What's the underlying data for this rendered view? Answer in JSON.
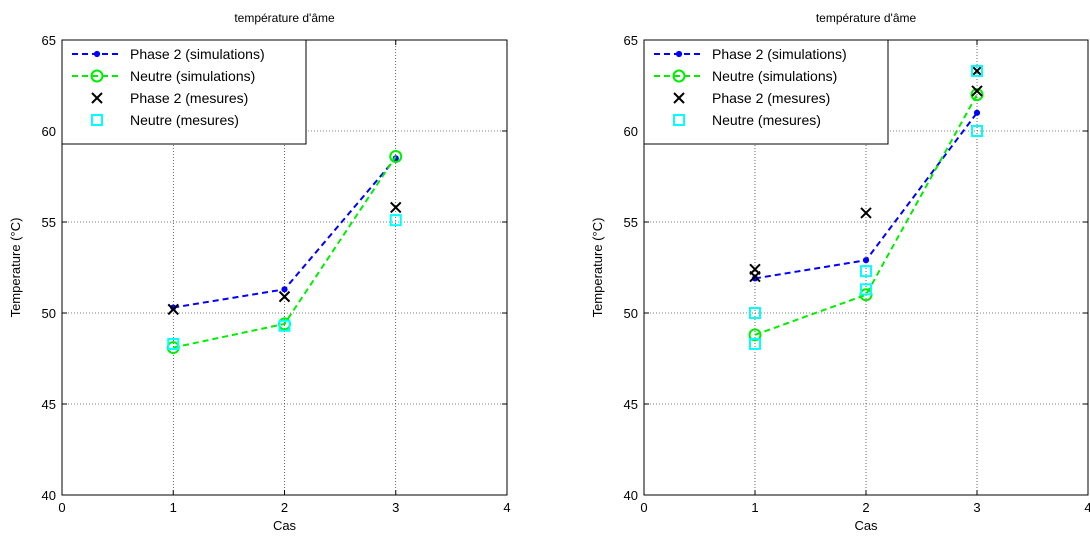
{
  "chart_data": [
    {
      "type": "line",
      "title": "température d'âme",
      "xlabel": "Cas",
      "ylabel": "Temperature (°C)",
      "xlim": [
        0,
        4
      ],
      "ylim": [
        40,
        65
      ],
      "xticks": [
        "0",
        "1",
        "2",
        "3",
        "4"
      ],
      "yticks": [
        "40",
        "45",
        "50",
        "55",
        "60",
        "65"
      ],
      "grid": true,
      "legend_position": "top-left",
      "series": [
        {
          "name": "Phase 2 (simulations)",
          "style": "dashed-dot",
          "color": "#0000ff",
          "x": [
            1,
            2,
            3
          ],
          "y": [
            50.3,
            51.3,
            58.5
          ]
        },
        {
          "name": "Neutre (simulations)",
          "style": "dashed-circle",
          "color": "#00ee00",
          "x": [
            1,
            2,
            3
          ],
          "y": [
            48.1,
            49.4,
            58.6
          ]
        },
        {
          "name": "Phase 2 (mesures)",
          "style": "x",
          "color": "#000000",
          "x": [
            1,
            2,
            3
          ],
          "y": [
            50.2,
            50.9,
            55.8
          ]
        },
        {
          "name": "Neutre (mesures)",
          "style": "square",
          "color": "#00ffff",
          "x": [
            1,
            2,
            3
          ],
          "y": [
            48.3,
            49.3,
            55.1
          ]
        }
      ]
    },
    {
      "type": "line",
      "title": "température d'âme",
      "xlabel": "Cas",
      "ylabel": "Temperature (°C)",
      "xlim": [
        0,
        4
      ],
      "ylim": [
        40,
        65
      ],
      "xticks": [
        "0",
        "1",
        "2",
        "3",
        "4"
      ],
      "yticks": [
        "40",
        "45",
        "50",
        "55",
        "60",
        "65"
      ],
      "grid": true,
      "legend_position": "top-left",
      "series": [
        {
          "name": "Phase 2 (simulations)",
          "style": "dashed-dot",
          "color": "#0000ff",
          "x": [
            1,
            2,
            3
          ],
          "y": [
            51.9,
            52.9,
            61.0
          ]
        },
        {
          "name": "Neutre (simulations)",
          "style": "dashed-circle",
          "color": "#00ee00",
          "x": [
            1,
            2,
            3
          ],
          "y": [
            48.8,
            51.0,
            62.0
          ]
        },
        {
          "name": "Phase 2 (mesures)",
          "style": "x",
          "color": "#000000",
          "x": [
            1,
            1,
            2,
            3,
            3
          ],
          "y": [
            52.4,
            52.0,
            55.5,
            63.3,
            62.2
          ]
        },
        {
          "name": "Neutre (mesures)",
          "style": "square",
          "color": "#00ffff",
          "x": [
            1,
            1,
            2,
            2,
            3,
            3
          ],
          "y": [
            50.0,
            48.3,
            52.3,
            51.3,
            63.3,
            60.0
          ]
        }
      ]
    }
  ]
}
